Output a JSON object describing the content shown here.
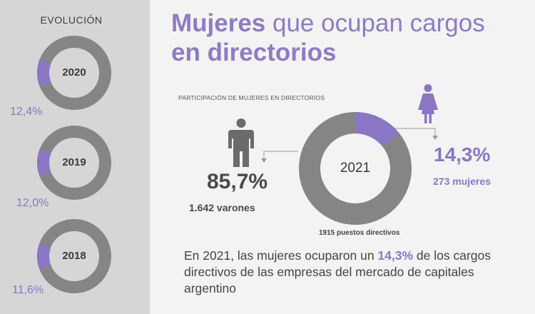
{
  "colors": {
    "accent": "#8a76c4",
    "ring": "#858585",
    "sidebar_bg": "#d6d6d6",
    "page_bg": "#f3f3f3"
  },
  "sidebar": {
    "title": "EVOLUCIÓN"
  },
  "header": {
    "title_bold_1": "Mujeres",
    "title_regular": " que ocupan cargos",
    "title_bold_2": "en directorios"
  },
  "main": {
    "subtitle": "PARTICIPACIÓN  DE MUJERES EN DIRECTORIOS",
    "men": {
      "pct_label": "85,7%",
      "count_label": "1.642 varones",
      "icon": "male-person-icon"
    },
    "women": {
      "pct_label": "14,3%",
      "count_label": "273 mujeres",
      "icon": "female-person-icon"
    },
    "total_label": "1915 puestos directivos",
    "body": {
      "part1": "En 2021, las mujeres ocuparon un ",
      "highlight": "14,3%",
      "part2": " de los cargos directivos de las empresas del mercado de capitales argentino"
    }
  },
  "chart_data": [
    {
      "type": "pie",
      "center_label": "2021",
      "categories": [
        "Mujeres",
        "Varones"
      ],
      "values": [
        14.3,
        85.7
      ],
      "counts": [
        273,
        1642
      ],
      "total": 1915
    },
    {
      "type": "pie",
      "center_label": "2020",
      "values": [
        12.4,
        87.6
      ],
      "value_label": "12,4%"
    },
    {
      "type": "pie",
      "center_label": "2019",
      "values": [
        12.0,
        88.0
      ],
      "value_label": "12,0%"
    },
    {
      "type": "pie",
      "center_label": "2018",
      "values": [
        11.6,
        88.4
      ],
      "value_label": "11,6%"
    }
  ]
}
